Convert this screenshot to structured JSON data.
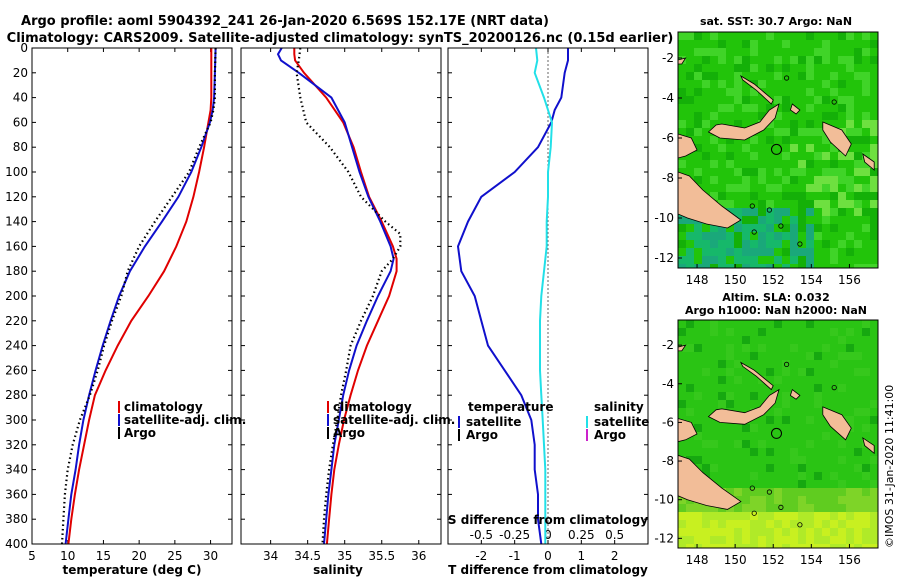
{
  "title": {
    "line1": "Argo profile: aoml 5904392_241 26-Jan-2020 6.569S 152.17E (NRT data)",
    "line2": "Climatology: CARS2009. Satellite-adjusted climatology: synTS_20200126.nc (0.15d earlier)"
  },
  "depth_ticks": [
    "0",
    "20",
    "40",
    "60",
    "80",
    "100",
    "120",
    "140",
    "160",
    "180",
    "200",
    "220",
    "240",
    "260",
    "280",
    "300",
    "320",
    "340",
    "360",
    "380",
    "400"
  ],
  "colors": {
    "climatology": "#e00000",
    "satellite": "#1010cc",
    "argo": "#000000",
    "sal_satellite": "#22e0e8",
    "sal_argo": "#cc22cc",
    "land": "#f2bd98"
  },
  "chart_data": [
    {
      "type": "line",
      "name": "temperature",
      "xlabel": "temperature (deg C)",
      "xlim": [
        5,
        33
      ],
      "ylim": [
        0,
        400
      ],
      "x_ticks": [
        "5",
        "10",
        "15",
        "20",
        "25",
        "30"
      ],
      "legend": [
        "climatology",
        "satellite-adj. clim.",
        "Argo"
      ],
      "series": [
        {
          "name": "climatology",
          "depth": [
            0,
            20,
            40,
            50,
            60,
            80,
            100,
            120,
            140,
            160,
            180,
            200,
            220,
            240,
            260,
            280,
            300,
            320,
            340,
            360,
            380,
            400
          ],
          "values": [
            30.1,
            30.1,
            30.1,
            30.0,
            29.7,
            29.1,
            28.4,
            27.6,
            26.6,
            25.2,
            23.5,
            21.3,
            18.9,
            17.0,
            15.3,
            13.8,
            13.0,
            12.3,
            11.6,
            11.0,
            10.5,
            10.1
          ]
        },
        {
          "name": "satellite-adj. clim.",
          "depth": [
            0,
            20,
            40,
            50,
            60,
            80,
            100,
            120,
            140,
            160,
            180,
            200,
            220,
            240,
            260,
            280,
            300,
            320,
            340,
            360,
            380,
            400
          ],
          "values": [
            30.7,
            30.6,
            30.5,
            30.3,
            29.9,
            28.7,
            27.3,
            25.5,
            23.2,
            20.8,
            18.7,
            17.2,
            16.0,
            14.9,
            13.9,
            13.0,
            12.2,
            11.6,
            11.1,
            10.5,
            10.1,
            9.7
          ]
        },
        {
          "name": "Argo",
          "depth": [
            0,
            20,
            40,
            50,
            60,
            80,
            100,
            120,
            140,
            160,
            180,
            200,
            220,
            240,
            260,
            280,
            300,
            320,
            340,
            360,
            380,
            400
          ],
          "values": [
            30.7,
            30.6,
            30.6,
            30.4,
            30.0,
            28.4,
            27.0,
            24.6,
            22.2,
            20.0,
            18.4,
            17.5,
            16.2,
            15.1,
            14.2,
            13.1,
            11.7,
            10.7,
            10.0,
            9.6,
            9.4,
            9.2
          ]
        }
      ]
    },
    {
      "type": "line",
      "name": "salinity",
      "xlabel": "salinity",
      "xlim": [
        33.6,
        36.3
      ],
      "ylim": [
        0,
        400
      ],
      "x_ticks": [
        "34",
        "34.5",
        "35",
        "35.5",
        "36"
      ],
      "legend": [
        "climatology",
        "satellite-adj. clim.",
        "Argo"
      ],
      "series": [
        {
          "name": "climatology",
          "depth": [
            0,
            5,
            10,
            20,
            40,
            60,
            80,
            100,
            120,
            140,
            160,
            170,
            180,
            200,
            220,
            240,
            260,
            280,
            300,
            320,
            340,
            360,
            380,
            400
          ],
          "values": [
            34.32,
            34.32,
            34.33,
            34.45,
            34.75,
            34.98,
            35.12,
            35.22,
            35.33,
            35.5,
            35.65,
            35.7,
            35.7,
            35.6,
            35.45,
            35.3,
            35.18,
            35.08,
            34.99,
            34.92,
            34.86,
            34.82,
            34.79,
            34.76
          ]
        },
        {
          "name": "satellite-adj. clim.",
          "depth": [
            0,
            5,
            10,
            20,
            40,
            60,
            80,
            100,
            120,
            140,
            160,
            170,
            180,
            200,
            220,
            240,
            260,
            280,
            300,
            320,
            340,
            360,
            380,
            400
          ],
          "values": [
            34.15,
            34.1,
            34.14,
            34.38,
            34.82,
            35.0,
            35.1,
            35.2,
            35.32,
            35.48,
            35.62,
            35.66,
            35.62,
            35.45,
            35.3,
            35.16,
            35.06,
            34.98,
            34.92,
            34.86,
            34.82,
            34.78,
            34.75,
            34.72
          ]
        },
        {
          "name": "Argo",
          "depth": [
            0,
            10,
            20,
            40,
            60,
            80,
            100,
            120,
            140,
            150,
            160,
            170,
            180,
            200,
            220,
            240,
            260,
            280,
            300,
            320,
            340,
            360,
            380,
            400
          ],
          "values": [
            34.4,
            34.38,
            34.35,
            34.4,
            34.48,
            34.8,
            35.05,
            35.22,
            35.55,
            35.75,
            35.75,
            35.65,
            35.5,
            35.38,
            35.22,
            35.08,
            35.02,
            34.95,
            34.9,
            34.84,
            34.79,
            34.75,
            34.72,
            34.7
          ]
        }
      ]
    },
    {
      "type": "line",
      "name": "difference from climatology",
      "xlabel": "T difference from climatology",
      "top_label": "S difference from climatology",
      "xlim": [
        -3,
        3
      ],
      "ylim": [
        0,
        400
      ],
      "x_ticks": [
        "-2",
        "-1",
        "0",
        "1",
        "2"
      ],
      "top_ticks": [
        "-0.5",
        "-0.25",
        "0",
        "0.25",
        "0.5"
      ],
      "legend_temperature": {
        "title": "temperature",
        "items": [
          "satellite",
          "Argo"
        ]
      },
      "legend_salinity": {
        "title": "salinity",
        "items": [
          "satellite",
          "Argo"
        ]
      },
      "series": [
        {
          "name": "T satellite",
          "depth": [
            0,
            10,
            20,
            40,
            50,
            60,
            80,
            100,
            120,
            140,
            160,
            180,
            200,
            220,
            240,
            260,
            280,
            300,
            320,
            340,
            360,
            380,
            400
          ],
          "values": [
            0.6,
            0.6,
            0.5,
            0.4,
            0.2,
            0.1,
            -0.3,
            -1.0,
            -2.0,
            -2.4,
            -2.7,
            -2.6,
            -2.2,
            -2.0,
            -1.8,
            -1.3,
            -0.8,
            -0.5,
            -0.4,
            -0.4,
            -0.3,
            -0.3,
            -0.2
          ]
        },
        {
          "name": "S satellite",
          "depth": [
            0,
            10,
            20,
            40,
            50,
            60,
            80,
            100,
            120,
            140,
            160,
            180,
            200,
            220,
            240,
            260,
            280,
            300,
            320,
            340,
            360,
            380,
            400
          ],
          "values": [
            -0.09,
            -0.08,
            -0.1,
            -0.03,
            0.0,
            0.03,
            0.02,
            0.0,
            0.0,
            -0.01,
            -0.01,
            -0.03,
            -0.05,
            -0.06,
            -0.06,
            -0.06,
            -0.05,
            -0.04,
            -0.03,
            -0.02,
            -0.02,
            -0.02,
            -0.02
          ]
        }
      ]
    },
    {
      "type": "heatmap",
      "name": "sst map",
      "title": "sat. SST: 30.7 Argo: NaN",
      "x_ticks": [
        "148",
        "150",
        "152",
        "154",
        "156"
      ],
      "y_ticks": [
        "-2",
        "-4",
        "-6",
        "-8",
        "-10",
        "-12"
      ],
      "xlim": [
        147,
        157.5
      ],
      "ylim": [
        -12.5,
        -0.7
      ],
      "argo_position": {
        "lon": 152.17,
        "lat": -6.569
      }
    },
    {
      "type": "heatmap",
      "name": "sla map",
      "title_line1": "Altim. SLA: 0.032",
      "title_line2": "Argo h1000: NaN h2000: NaN",
      "x_ticks": [
        "148",
        "150",
        "152",
        "154",
        "156"
      ],
      "y_ticks": [
        "-2",
        "-4",
        "-6",
        "-8",
        "-10",
        "-12"
      ],
      "xlim": [
        147,
        157.5
      ],
      "ylim": [
        -12.5,
        -0.7
      ],
      "argo_position": {
        "lon": 152.17,
        "lat": -6.569
      }
    }
  ],
  "credit": "©IMOS 31-Jan-2020 11:41:00"
}
